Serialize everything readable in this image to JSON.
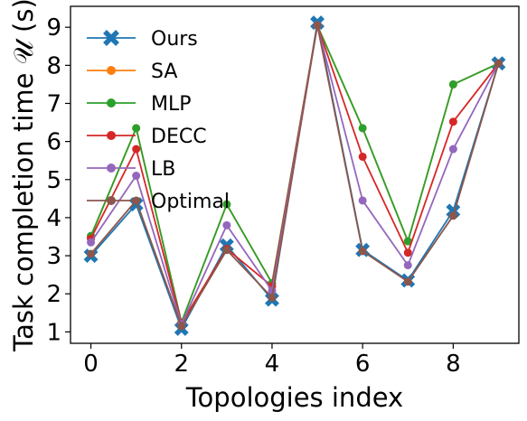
{
  "chart_data": {
    "type": "line",
    "x": [
      0,
      1,
      2,
      3,
      4,
      5,
      6,
      7,
      8,
      9
    ],
    "xlabel": "Topologies index",
    "ylabel": "Task completion time 𝒰 (s)",
    "xlim": [
      -0.45,
      9.45
    ],
    "ylim": [
      0.7,
      9.55
    ],
    "xticks": [
      "0",
      "2",
      "4",
      "6",
      "8"
    ],
    "yticks": [
      "1",
      "2",
      "3",
      "4",
      "5",
      "6",
      "7",
      "8",
      "9"
    ],
    "grid": false,
    "legend_position": "top-left",
    "series": [
      {
        "name": "Ours",
        "color": "#1f77b4",
        "marker": "x-thick",
        "values": [
          3.0,
          4.35,
          1.08,
          3.27,
          1.85,
          9.12,
          3.15,
          2.35,
          4.18,
          8.05
        ]
      },
      {
        "name": "SA",
        "color": "#ff7f0e",
        "marker": "circle",
        "values": [
          3.5,
          6.35,
          1.25,
          4.35,
          2.28,
          9.05,
          6.35,
          3.38,
          7.5,
          8.05
        ]
      },
      {
        "name": "MLP",
        "color": "#2ca02c",
        "marker": "circle",
        "values": [
          3.52,
          6.35,
          1.25,
          4.35,
          2.28,
          9.05,
          6.35,
          3.38,
          7.5,
          8.05
        ]
      },
      {
        "name": "DECC",
        "color": "#d62728",
        "marker": "circle",
        "values": [
          3.45,
          5.8,
          1.23,
          3.18,
          2.2,
          9.05,
          5.6,
          3.08,
          6.52,
          8.05
        ]
      },
      {
        "name": "LB",
        "color": "#9467bd",
        "marker": "circle",
        "values": [
          3.35,
          5.1,
          1.2,
          3.8,
          2.08,
          9.05,
          4.45,
          2.75,
          5.8,
          8.05
        ]
      },
      {
        "name": "Optimal",
        "color": "#8c564b",
        "marker": "circle",
        "values": [
          3.05,
          4.45,
          1.15,
          3.15,
          1.9,
          9.05,
          3.12,
          2.32,
          4.05,
          8.05
        ]
      }
    ]
  }
}
